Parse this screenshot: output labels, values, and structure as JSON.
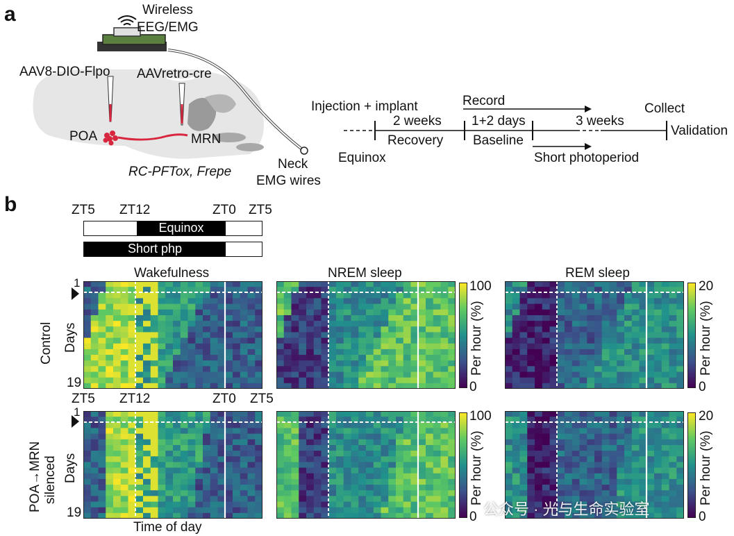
{
  "panel_a": {
    "letter": "a",
    "wireless_line1": "Wireless",
    "wireless_line2": "EEG/EMG",
    "aav8": "AAV8-DIO-Flpo",
    "aavretro": "AAVretro-cre",
    "poa": "POA",
    "mrn": "MRN",
    "mouse_line": "RC-PFTox, Frepe",
    "neck_line1": "Neck",
    "neck_line2": "EMG wires",
    "timeline": {
      "injection": "Injection + implant",
      "two_weeks": "2 weeks",
      "recovery": "Recovery",
      "equinox": "Equinox",
      "record": "Record",
      "days": "1+2 days",
      "baseline": "Baseline",
      "three_weeks": "3 weeks",
      "collect": "Collect",
      "validation": "Validation",
      "short_photoperiod": "Short photoperiod"
    }
  },
  "panel_b": {
    "letter": "b",
    "top_ticks": [
      "ZT5",
      "ZT12",
      "ZT0",
      "ZT5"
    ],
    "equinox_bar": "Equinox",
    "short_bar": "Short php",
    "col_titles": [
      "Wakefulness",
      "NREM sleep",
      "REM sleep"
    ],
    "row_labels": {
      "control": "Control",
      "silenced_line1": "POA→MRN",
      "silenced_line2": "silenced"
    },
    "days_label": "Days",
    "day_first": "1",
    "day_last": "19",
    "mid_ticks": [
      "ZT5",
      "ZT12",
      "ZT0",
      "ZT5"
    ],
    "xlabel": "Time of day",
    "colorbars": [
      {
        "max": "100",
        "min": "0",
        "label": "Per hour (%)"
      },
      {
        "max": "20",
        "min": "0",
        "label": "Per hour (%)"
      },
      {
        "max": "100",
        "min": "0",
        "label": "Per hour (%)"
      },
      {
        "max": "20",
        "min": "0",
        "label": "Per hour (%)"
      }
    ],
    "watermark": "公众号 · 光与生命实验室"
  },
  "colors": {
    "viridis": [
      "#440154",
      "#3b528b",
      "#21918c",
      "#5ec962",
      "#fde725"
    ],
    "red": "#d7263d",
    "brain": "#e6e6e6"
  },
  "chart_data": [
    {
      "type": "heatmap",
      "title": "Wakefulness",
      "row_label": "Control",
      "rows": 19,
      "cols": 24,
      "value_range": [
        0,
        100
      ]
    },
    {
      "type": "heatmap",
      "title": "NREM sleep",
      "row_label": "Control",
      "rows": 19,
      "cols": 24,
      "value_range": [
        0,
        100
      ]
    },
    {
      "type": "heatmap",
      "title": "REM sleep",
      "row_label": "Control",
      "rows": 19,
      "cols": 24,
      "value_range": [
        0,
        20
      ]
    },
    {
      "type": "heatmap",
      "title": "Wakefulness",
      "row_label": "POA→MRN silenced",
      "rows": 19,
      "cols": 24,
      "value_range": [
        0,
        100
      ]
    },
    {
      "type": "heatmap",
      "title": "NREM sleep",
      "row_label": "POA→MRN silenced",
      "rows": 19,
      "cols": 24,
      "value_range": [
        0,
        100
      ]
    },
    {
      "type": "heatmap",
      "title": "REM sleep",
      "row_label": "POA→MRN silenced",
      "rows": 19,
      "cols": 24,
      "value_range": [
        0,
        20
      ]
    }
  ]
}
